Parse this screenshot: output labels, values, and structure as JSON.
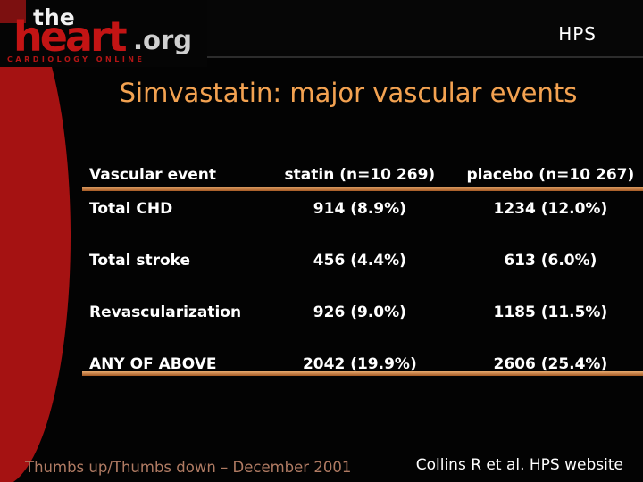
{
  "header": {
    "badge": "HPS",
    "logo": {
      "the": "the",
      "heart": "heart",
      "org": ".org",
      "tagline": "CARDIOLOGY ONLINE"
    }
  },
  "title": "Simvastatin: major vascular events",
  "table": {
    "columns": [
      "Vascular event",
      "statin (n=10 269)",
      "placebo (n=10 267)"
    ],
    "rows": [
      {
        "label": "Total CHD",
        "statin": "914 (8.9%)",
        "placebo": "1234 (12.0%)"
      },
      {
        "label": "Total stroke",
        "statin": "456 (4.4%)",
        "placebo": "613 (6.0%)"
      },
      {
        "label": "Revascularization",
        "statin": "926 (9.0%)",
        "placebo": "1185 (11.5%)"
      },
      {
        "label": "ANY OF ABOVE",
        "statin": "2042 (19.9%)",
        "placebo": "2606 (25.4%)"
      }
    ]
  },
  "footer": {
    "left": "Thumbs up/Thumbs down – December 2001",
    "right": "Collins R et al. HPS website"
  },
  "colors": {
    "title_orange": "#f3a251",
    "rule_orange_light": "#e8ab70",
    "rule_orange_dark": "#a55a24",
    "ellipse_red": "#a51212",
    "logo_heart_red": "#c31414",
    "footer_left_text": "#b07b63",
    "background": "#030303",
    "table_text": "#ffffff"
  }
}
